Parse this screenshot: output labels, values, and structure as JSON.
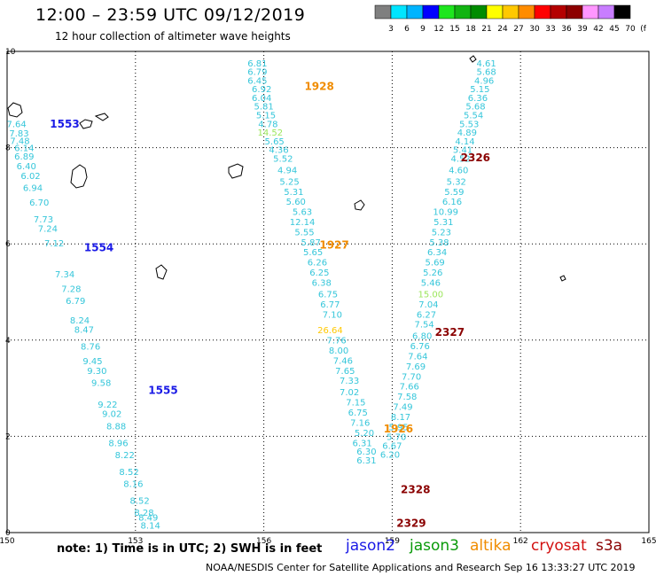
{
  "title": "12:00 – 23:59 UTC 09/12/2019",
  "subtitle": "12 hour collection of altimeter wave heights",
  "note": "note: 1) Time is in UTC; 2) SWH is in feet",
  "credit": "NOAA/NESDIS Center for Satellite Applications and Research   Sep 16 13:33:27 UTC 2019",
  "satellites": [
    {
      "name": "jason2",
      "color": "#1a1ae6"
    },
    {
      "name": "jason3",
      "color": "#0a9a0a"
    },
    {
      "name": "altika",
      "color": "#f08c00"
    },
    {
      "name": "cryosat",
      "color": "#d21010"
    },
    {
      "name": "s3a",
      "color": "#8a0000"
    }
  ],
  "color_scale": {
    "labels": [
      "3",
      "6",
      "9",
      "12",
      "15",
      "18",
      "21",
      "24",
      "27",
      "30",
      "33",
      "36",
      "39",
      "42",
      "45",
      "70",
      "(ft)"
    ],
    "colors": [
      "#7f7f7f",
      "#00e5ff",
      "#00b4ff",
      "#0000ff",
      "#1ee61e",
      "#12b412",
      "#008c00",
      "#ffff00",
      "#ffc800",
      "#ff8c00",
      "#ff0000",
      "#b40000",
      "#8c0000",
      "#ff96ff",
      "#c87dff",
      "#000000"
    ]
  },
  "chart_data": {
    "type": "scatter",
    "x_range": [
      150,
      165
    ],
    "y_range": [
      0,
      10
    ],
    "x_ticks": [
      "150",
      "153",
      "156",
      "159",
      "162",
      "165"
    ],
    "y_ticks": [
      "0",
      "2",
      "4",
      "6",
      "8",
      "10"
    ],
    "grid": true,
    "tracks": [
      {
        "name": "left-swath",
        "color": "#35c6da",
        "values": [
          [
            150.22,
            8.43,
            "7.64"
          ],
          [
            150.28,
            8.23,
            "7.83"
          ],
          [
            150.3,
            8.08,
            "7.48"
          ],
          [
            150.4,
            7.93,
            "6.14"
          ],
          [
            150.4,
            7.75,
            "6.89"
          ],
          [
            150.45,
            7.55,
            "6.40"
          ],
          [
            150.55,
            7.35,
            "6.02"
          ],
          [
            150.6,
            7.1,
            "6.94"
          ],
          [
            150.75,
            6.8,
            "6.70"
          ],
          [
            150.85,
            6.45,
            "7.73"
          ],
          [
            150.95,
            6.25,
            "7.24"
          ],
          [
            151.1,
            5.95,
            "7.12"
          ],
          [
            151.35,
            5.3,
            "7.34"
          ],
          [
            151.5,
            5.0,
            "7.28"
          ],
          [
            151.6,
            4.75,
            "6.79"
          ],
          [
            151.7,
            4.35,
            "8.24"
          ],
          [
            151.8,
            4.15,
            "8.47"
          ],
          [
            151.95,
            3.8,
            "8.76"
          ],
          [
            152.0,
            3.5,
            "9.45"
          ],
          [
            152.1,
            3.3,
            "9.30"
          ],
          [
            152.2,
            3.05,
            "9.58"
          ],
          [
            152.35,
            2.6,
            "9.22"
          ],
          [
            152.45,
            2.4,
            "9.02"
          ],
          [
            152.55,
            2.15,
            "8.88"
          ],
          [
            152.6,
            1.8,
            "8.96"
          ],
          [
            152.75,
            1.55,
            "8.22"
          ],
          [
            152.85,
            1.2,
            "8.52"
          ],
          [
            152.95,
            0.95,
            "8.16"
          ],
          [
            153.1,
            0.6,
            "8.52"
          ],
          [
            153.2,
            0.35,
            "8.28"
          ],
          [
            153.3,
            0.25,
            "8.49"
          ],
          [
            153.35,
            0.08,
            "8.14"
          ]
        ]
      },
      {
        "name": "middle-track",
        "color": "#35c6da",
        "values": [
          [
            155.85,
            9.69,
            "6.81"
          ],
          [
            155.85,
            9.51,
            "6.79"
          ],
          [
            155.85,
            9.33,
            "6.45"
          ],
          [
            155.95,
            9.15,
            "6.92"
          ],
          [
            155.95,
            8.97,
            "6.04"
          ],
          [
            156.0,
            8.79,
            "5.81"
          ],
          [
            156.05,
            8.61,
            "5.15"
          ],
          [
            156.1,
            8.43,
            "4.78"
          ],
          [
            156.15,
            8.25,
            "14.52"
          ],
          [
            156.25,
            8.07,
            "5.65"
          ],
          [
            156.35,
            7.89,
            "4.36"
          ],
          [
            156.45,
            7.71,
            "5.52"
          ],
          [
            156.55,
            7.47,
            "4.94"
          ],
          [
            156.6,
            7.23,
            "5.25"
          ],
          [
            156.7,
            7.02,
            "5.31"
          ],
          [
            156.75,
            6.81,
            "5.60"
          ],
          [
            156.9,
            6.6,
            "5.63"
          ],
          [
            156.9,
            6.39,
            "12.14"
          ],
          [
            156.95,
            6.18,
            "5.55"
          ],
          [
            157.1,
            5.97,
            "5.87"
          ],
          [
            157.15,
            5.76,
            "5.65"
          ],
          [
            157.25,
            5.55,
            "6.26"
          ],
          [
            157.3,
            5.34,
            "6.25"
          ],
          [
            157.35,
            5.13,
            "6.38"
          ],
          [
            157.5,
            4.89,
            "6.75"
          ],
          [
            157.55,
            4.68,
            "6.77"
          ],
          [
            157.6,
            4.47,
            "7.10"
          ],
          [
            157.55,
            4.14,
            "26.64"
          ],
          [
            157.7,
            3.93,
            "7.76"
          ],
          [
            157.75,
            3.72,
            "8.00"
          ],
          [
            157.85,
            3.51,
            "7.46"
          ],
          [
            157.9,
            3.3,
            "7.65"
          ],
          [
            158.0,
            3.09,
            "7.33"
          ],
          [
            158.0,
            2.85,
            "7.02"
          ],
          [
            158.15,
            2.64,
            "7.15"
          ],
          [
            158.2,
            2.43,
            "6.75"
          ],
          [
            158.25,
            2.22,
            "7.16"
          ],
          [
            158.35,
            2.01,
            "5.20"
          ],
          [
            158.3,
            1.8,
            "6.31"
          ],
          [
            158.4,
            1.62,
            "6.30"
          ],
          [
            158.4,
            1.44,
            "6.31"
          ]
        ]
      },
      {
        "name": "right-track",
        "color": "#35c6da",
        "values": [
          [
            161.2,
            9.69,
            "4.61"
          ],
          [
            161.2,
            9.51,
            "5.68"
          ],
          [
            161.15,
            9.33,
            "4.96"
          ],
          [
            161.05,
            9.15,
            "5.15"
          ],
          [
            161.0,
            8.97,
            "6.36"
          ],
          [
            160.95,
            8.79,
            "5.68"
          ],
          [
            160.9,
            8.61,
            "5.54"
          ],
          [
            160.8,
            8.43,
            "5.53"
          ],
          [
            160.75,
            8.25,
            "4.89"
          ],
          [
            160.7,
            8.07,
            "4.14"
          ],
          [
            160.65,
            7.89,
            "5.41"
          ],
          [
            160.6,
            7.71,
            "4.52"
          ],
          [
            160.55,
            7.47,
            "4.60"
          ],
          [
            160.5,
            7.23,
            "5.32"
          ],
          [
            160.45,
            7.02,
            "5.59"
          ],
          [
            160.4,
            6.81,
            "6.16"
          ],
          [
            160.25,
            6.6,
            "10.99"
          ],
          [
            160.2,
            6.39,
            "5.31"
          ],
          [
            160.15,
            6.18,
            "5.23"
          ],
          [
            160.1,
            5.97,
            "5.38"
          ],
          [
            160.05,
            5.76,
            "6.34"
          ],
          [
            160.0,
            5.55,
            "5.69"
          ],
          [
            159.95,
            5.34,
            "5.26"
          ],
          [
            159.9,
            5.13,
            "5.46"
          ],
          [
            159.9,
            4.89,
            "15.00"
          ],
          [
            159.85,
            4.68,
            "7.04"
          ],
          [
            159.8,
            4.47,
            "6.27"
          ],
          [
            159.75,
            4.26,
            "7.54"
          ],
          [
            159.7,
            4.02,
            "6.80"
          ],
          [
            159.65,
            3.81,
            "6.76"
          ],
          [
            159.6,
            3.6,
            "7.64"
          ],
          [
            159.55,
            3.39,
            "7.69"
          ],
          [
            159.45,
            3.18,
            "7.70"
          ],
          [
            159.4,
            2.97,
            "7.66"
          ],
          [
            159.35,
            2.76,
            "7.58"
          ],
          [
            159.25,
            2.55,
            "7.49"
          ],
          [
            159.2,
            2.34,
            "8.17"
          ],
          [
            159.15,
            2.13,
            "5.95"
          ],
          [
            159.1,
            1.92,
            "5.70"
          ],
          [
            159.0,
            1.74,
            "6.67"
          ],
          [
            158.95,
            1.56,
            "6.20"
          ]
        ]
      }
    ],
    "pass_labels": [
      [
        151.0,
        8.42,
        "1553",
        "jason2"
      ],
      [
        151.8,
        5.85,
        "1554",
        "jason2"
      ],
      [
        153.3,
        2.88,
        "1555",
        "jason2"
      ],
      [
        156.95,
        9.2,
        "1928",
        "altika"
      ],
      [
        157.3,
        5.9,
        "1927",
        "altika"
      ],
      [
        158.8,
        2.08,
        "1926",
        "altika"
      ],
      [
        160.6,
        7.72,
        "2326",
        "s3a"
      ],
      [
        160.0,
        4.09,
        "2327",
        "s3a"
      ],
      [
        159.2,
        0.82,
        "2328",
        "s3a"
      ],
      [
        159.1,
        0.12,
        "2329",
        "s3a"
      ]
    ]
  }
}
